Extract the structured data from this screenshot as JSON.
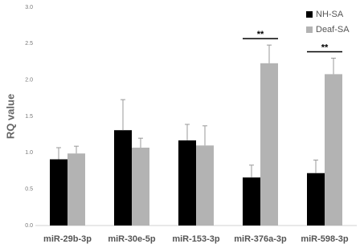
{
  "chart_data": {
    "type": "bar",
    "y_label": "RQ value",
    "categories": [
      "miR-29b-3p",
      "miR-30e-5p",
      "miR-153-3p",
      "miR-376a-3p",
      "miR-598-3p"
    ],
    "series": [
      {
        "name": "NH-SA",
        "color": "#000000",
        "values": [
          0.91,
          1.31,
          1.17,
          0.66,
          0.72
        ],
        "errors": [
          0.16,
          0.42,
          0.22,
          0.17,
          0.18
        ]
      },
      {
        "name": "Deaf-SA",
        "color": "#b3b3b3",
        "values": [
          0.99,
          1.07,
          1.1,
          2.23,
          2.08
        ],
        "errors": [
          0.1,
          0.13,
          0.27,
          0.25,
          0.22
        ]
      }
    ],
    "annotations": [
      {
        "text": "**",
        "category": "miR-376a-3p"
      },
      {
        "text": "**",
        "category": "miR-598-3p"
      }
    ],
    "ylim": [
      0,
      3
    ],
    "yticks": [
      {
        "value": 0,
        "label": "0.0"
      },
      {
        "value": 0.5,
        "label": "0.5"
      },
      {
        "value": 1,
        "label": "1.0"
      },
      {
        "value": 1.5,
        "label": "1.5"
      },
      {
        "value": 2,
        "label": "2.0"
      },
      {
        "value": 2.5,
        "label": "2.5"
      },
      {
        "value": 3,
        "label": "3.0"
      }
    ],
    "legend": "top-right"
  }
}
